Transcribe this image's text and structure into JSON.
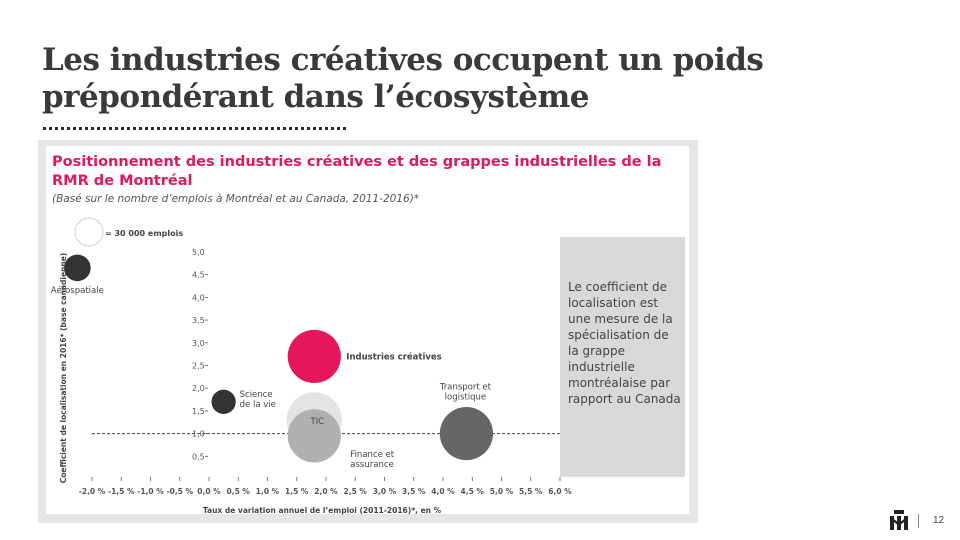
{
  "slide": {
    "title": "Les industries créatives occupent un poids prépondérant dans l’écosystème",
    "page_number": "12"
  },
  "note": {
    "text": "Le coefficient de localisation est une mesure de la spécialisation de la grappe industrielle montréalaise par rapport au Canada"
  },
  "colors": {
    "accent": "#e5175a",
    "dark": "#333333",
    "mid": "#666666",
    "light_gray": "#b0b0b0",
    "pale_gray": "#e4e4e4",
    "note_bg": "#d9d9d9"
  },
  "chart_data": {
    "type": "scatter",
    "title": "Positionnement des industries créatives et des grappes industrielles de la RMR de Montréal",
    "subtitle": "(Basé sur le nombre d’emplois à Montréal et au Canada, 2011-2016)*",
    "xlabel": "Taux de variation annuel de l’emploi (2011-2016)*, en %",
    "ylabel": "Coefficient de localisation en 2016* (base canadienne)",
    "xlim": [
      -2.0,
      6.0
    ],
    "ylim": [
      0,
      5.0
    ],
    "x_ticks": [
      "-2,0 %",
      "-1,5 %",
      "-1,0 %",
      "-0,5 %",
      "0,0 %",
      "0,5 %",
      "1,0 %",
      "1,5 %",
      "2,0 %",
      "2,5 %",
      "3,0 %",
      "3,5 %",
      "4,0 %",
      "4,5 %",
      "5,0 %",
      "5,5 %",
      "6,0 %"
    ],
    "y_ticks": [
      {
        "value": 0.5,
        "label": "0,5"
      },
      {
        "value": 1.0,
        "label": "1,0"
      },
      {
        "value": 1.5,
        "label": "1,5"
      },
      {
        "value": 2.0,
        "label": "2,0"
      },
      {
        "value": 2.5,
        "label": "2,5"
      },
      {
        "value": 3.0,
        "label": "3,0"
      },
      {
        "value": 3.5,
        "label": "3,5"
      },
      {
        "value": 4.0,
        "label": "4,0"
      },
      {
        "value": 4.5,
        "label": "4,5"
      },
      {
        "value": 5.0,
        "label": "5,0"
      }
    ],
    "reference_line_y": 1.0,
    "size_legend": {
      "label": "= 30 000 emplois",
      "jobs": 30000
    },
    "bubbles": [
      {
        "label": "Aérospatiale",
        "x": -2.25,
        "y": 4.65,
        "jobs": 30000,
        "color": "#333333"
      },
      {
        "label": "Science de la vie",
        "x": 0.25,
        "y": 1.7,
        "jobs": 25000,
        "color": "#333333"
      },
      {
        "label": "TIC",
        "x": 1.8,
        "y": 1.3,
        "jobs": 130000,
        "color": "#e4e4e4"
      },
      {
        "label": "Industries créatives",
        "x": 1.8,
        "y": 2.7,
        "jobs": 120000,
        "color": "#e5175a"
      },
      {
        "label": "Finance et assurance",
        "x": 1.8,
        "y": 0.95,
        "jobs": 120000,
        "color": "#b0b0b0"
      },
      {
        "label": "Transport et logistique",
        "x": 4.4,
        "y": 1.0,
        "jobs": 120000,
        "color": "#666666"
      }
    ]
  }
}
